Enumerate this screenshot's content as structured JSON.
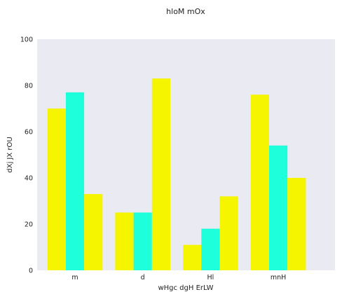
{
  "chart_data": {
    "type": "bar",
    "title": "hloM mOx",
    "xlabel": "wHgc dgH ErLW",
    "ylabel": "dXj JX rOU",
    "categories": [
      "m",
      "d",
      "Hl",
      "mnH"
    ],
    "series": [
      {
        "values": [
          70,
          25,
          11,
          76
        ],
        "color": "#f5f500"
      },
      {
        "values": [
          77,
          25,
          18,
          54
        ],
        "color": "#1effdc"
      },
      {
        "values": [
          33,
          83,
          32,
          40
        ],
        "color": "#f5f500"
      }
    ],
    "ylim": [
      0,
      100
    ],
    "yticks": [
      "0",
      "20",
      "40",
      "60",
      "80",
      "100"
    ],
    "grid": false,
    "legend": "none",
    "colors": {
      "plot_background": "#eaeaf2",
      "page_background": "#ffffff",
      "text": "#222222"
    }
  }
}
